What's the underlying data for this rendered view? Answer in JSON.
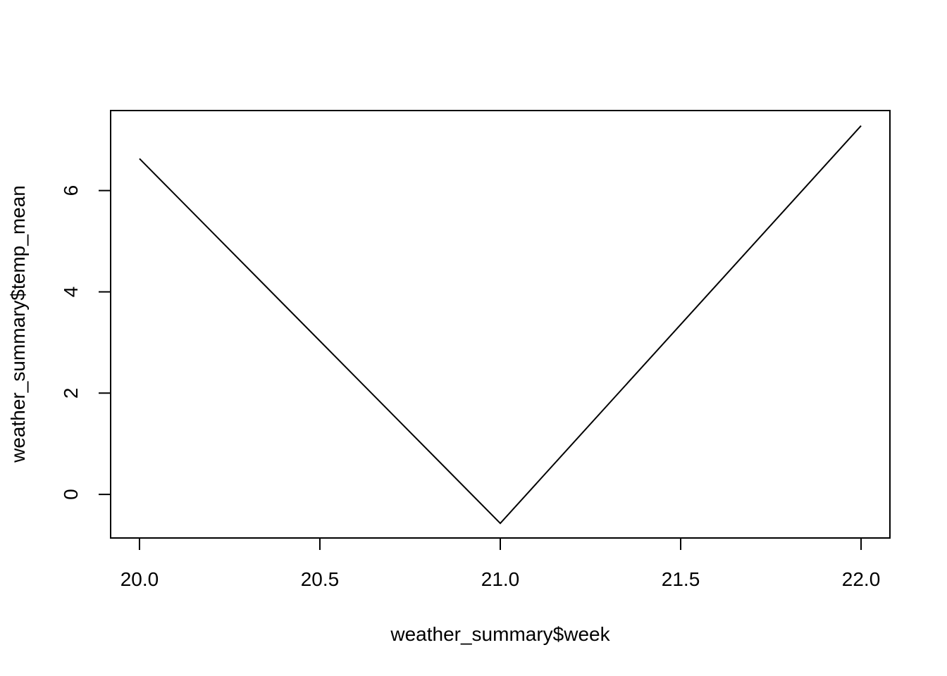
{
  "chart_data": {
    "type": "line",
    "title": "",
    "xlabel": "weather_summary$week",
    "ylabel": "weather_summary$temp_mean",
    "x": [
      20,
      21,
      22
    ],
    "series": [
      {
        "values": [
          6.63,
          -0.57,
          7.28
        ]
      }
    ],
    "xlim": [
      19.92,
      22.08
    ],
    "ylim": [
      -0.86,
      7.58
    ],
    "xticks": [
      20,
      20.5,
      21,
      21.5,
      22
    ],
    "xtick_labels": [
      "20.0",
      "20.5",
      "21.0",
      "21.5",
      "22.0"
    ],
    "yticks": [
      0,
      2,
      4,
      6
    ],
    "ytick_labels": [
      "0",
      "2",
      "4",
      "6"
    ],
    "grid": false,
    "line_color": "#000000"
  }
}
